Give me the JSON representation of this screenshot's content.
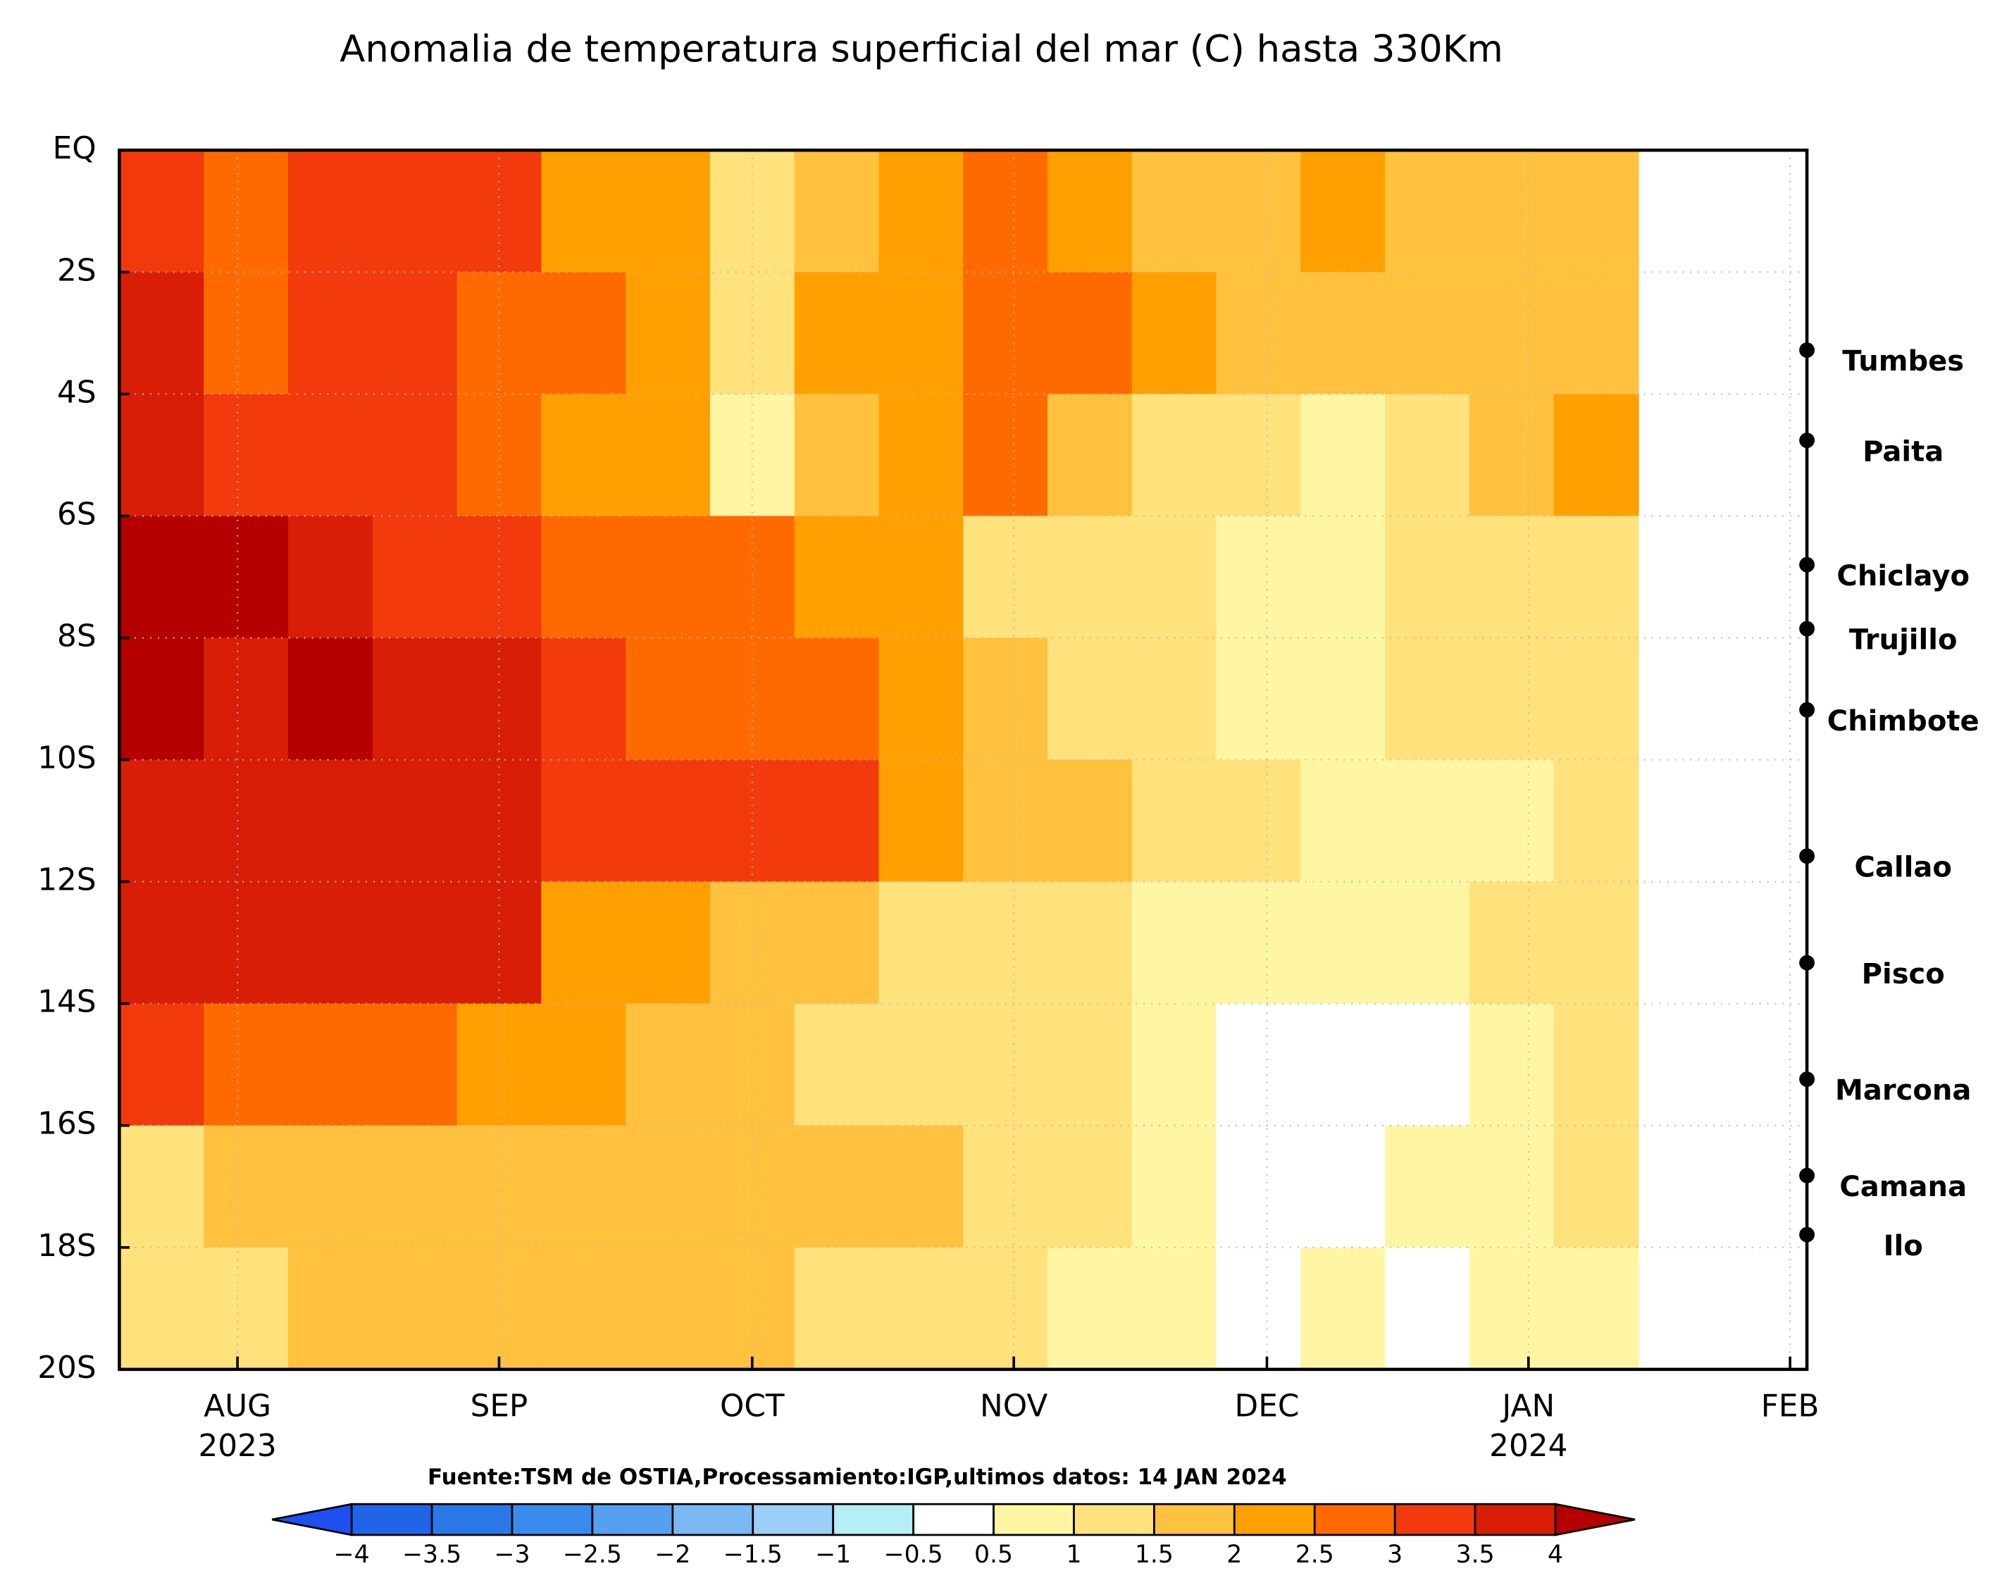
{
  "chart_data": {
    "type": "heatmap",
    "title": "Anomalia de temperatura superficial del mar (C) hasta 330Km",
    "footer": "Fuente:TSM de OSTIA,Processamiento:IGP,ultimos datos: 14 JAN 2024",
    "xlim": [
      -14,
      186
    ],
    "xticks": [
      {
        "value": 0,
        "label": "AUG"
      },
      {
        "value": 31,
        "label": "SEP"
      },
      {
        "value": 61,
        "label": "OCT"
      },
      {
        "value": 92,
        "label": "NOV"
      },
      {
        "value": 122,
        "label": "DEC"
      },
      {
        "value": 153,
        "label": "JAN"
      },
      {
        "value": 184,
        "label": "FEB"
      }
    ],
    "x_year_labels": [
      {
        "value": 0,
        "label": "2023"
      },
      {
        "value": 153,
        "label": "2024"
      }
    ],
    "ylim": [
      -20,
      0
    ],
    "yticks": [
      {
        "value": 0,
        "label": "EQ"
      },
      {
        "value": -2,
        "label": "2S"
      },
      {
        "value": -4,
        "label": "4S"
      },
      {
        "value": -6,
        "label": "6S"
      },
      {
        "value": -8,
        "label": "8S"
      },
      {
        "value": -10,
        "label": "10S"
      },
      {
        "value": -12,
        "label": "12S"
      },
      {
        "value": -14,
        "label": "14S"
      },
      {
        "value": -16,
        "label": "16S"
      },
      {
        "value": -18,
        "label": "18S"
      },
      {
        "value": -20,
        "label": "20S"
      }
    ],
    "grid": true,
    "x_edges": [
      -14,
      -4,
      6,
      16,
      26,
      36,
      46,
      56,
      66,
      76,
      86,
      96,
      106,
      116,
      126,
      136,
      146,
      156,
      166
    ],
    "y_edges": [
      0,
      -2,
      -4,
      -6,
      -8,
      -10,
      -12,
      -14,
      -16,
      -18,
      -20
    ],
    "z": [
      [
        3.2,
        2.5,
        3.2,
        3.0,
        3.0,
        2.3,
        2.2,
        1.2,
        1.5,
        2.2,
        2.6,
        2.0,
        1.8,
        1.5,
        2.2,
        1.8,
        1.8,
        1.7
      ],
      [
        3.6,
        2.8,
        3.0,
        3.2,
        2.8,
        2.8,
        2.4,
        1.0,
        2.0,
        2.4,
        2.8,
        2.6,
        2.0,
        1.7,
        1.8,
        1.5,
        1.8,
        1.8
      ],
      [
        3.7,
        3.2,
        3.0,
        3.0,
        2.5,
        2.2,
        2.0,
        0.8,
        1.5,
        2.0,
        2.7,
        1.8,
        1.2,
        1.4,
        0.8,
        1.0,
        1.5,
        2.0
      ],
      [
        4.1,
        4.1,
        3.8,
        3.2,
        3.0,
        2.8,
        2.8,
        2.7,
        2.2,
        2.0,
        1.3,
        1.3,
        1.1,
        0.8,
        0.7,
        1.0,
        1.0,
        1.4
      ],
      [
        4.0,
        3.9,
        4.0,
        3.8,
        3.6,
        3.3,
        2.8,
        2.7,
        2.5,
        2.2,
        1.5,
        1.4,
        1.2,
        0.9,
        0.9,
        1.0,
        1.2,
        1.3
      ],
      [
        3.9,
        3.8,
        3.8,
        3.6,
        3.6,
        3.3,
        3.2,
        3.1,
        3.1,
        2.3,
        1.6,
        1.6,
        1.4,
        1.2,
        0.8,
        0.7,
        0.7,
        1.2
      ],
      [
        3.8,
        3.7,
        3.7,
        3.6,
        3.5,
        2.3,
        2.1,
        1.7,
        1.6,
        1.4,
        1.3,
        1.1,
        0.8,
        0.6,
        0.8,
        0.9,
        1.0,
        1.3
      ],
      [
        3.2,
        2.5,
        2.6,
        2.5,
        2.3,
        2.0,
        1.7,
        1.5,
        1.4,
        1.4,
        1.3,
        1.2,
        0.5,
        0.4,
        0.3,
        0.3,
        0.7,
        1.0
      ],
      [
        1.3,
        1.8,
        1.8,
        1.8,
        1.6,
        1.7,
        1.7,
        1.6,
        1.6,
        1.5,
        1.3,
        1.0,
        0.8,
        0.3,
        0.4,
        0.6,
        0.8,
        1.0
      ],
      [
        1.0,
        1.3,
        1.5,
        1.6,
        1.7,
        1.6,
        1.7,
        1.6,
        1.4,
        1.2,
        1.0,
        0.7,
        0.5,
        0.2,
        0.6,
        0.4,
        0.5,
        0.6
      ]
    ],
    "levels": [
      {
        "value": -4,
        "label": "−4"
      },
      {
        "value": -3.5,
        "label": "−3.5"
      },
      {
        "value": -3,
        "label": "−3"
      },
      {
        "value": -2.5,
        "label": "−2.5"
      },
      {
        "value": -2,
        "label": "−2"
      },
      {
        "value": -1.5,
        "label": "−1.5"
      },
      {
        "value": -1,
        "label": "−1"
      },
      {
        "value": -0.5,
        "label": "−0.5"
      },
      0.5,
      1,
      1.5,
      2,
      2.5,
      3,
      3.5,
      4
    ],
    "colors": [
      "#1e50f0",
      "#2064e8",
      "#2a78e8",
      "#3a8cec",
      "#55a0f0",
      "#7ab8f4",
      "#9ccff6",
      "#b6eef8",
      "#ffffff",
      "#fff6a4",
      "#ffe27c",
      "#ffc13e",
      "#ffa000",
      "#ff6a00",
      "#f23a0c",
      "#d81e06",
      "#b40000"
    ],
    "stations": [
      {
        "name": "Tumbes",
        "lat": -3.28
      },
      {
        "name": "Paita",
        "lat": -4.76
      },
      {
        "name": "Chiclayo",
        "lat": -6.8
      },
      {
        "name": "Trujillo",
        "lat": -7.85
      },
      {
        "name": "Chimbote",
        "lat": -9.18
      },
      {
        "name": "Callao",
        "lat": -11.58
      },
      {
        "name": "Pisco",
        "lat": -13.33
      },
      {
        "name": "Marcona",
        "lat": -15.24
      },
      {
        "name": "Camana",
        "lat": -16.82
      },
      {
        "name": "Ilo",
        "lat": -17.79
      }
    ]
  }
}
